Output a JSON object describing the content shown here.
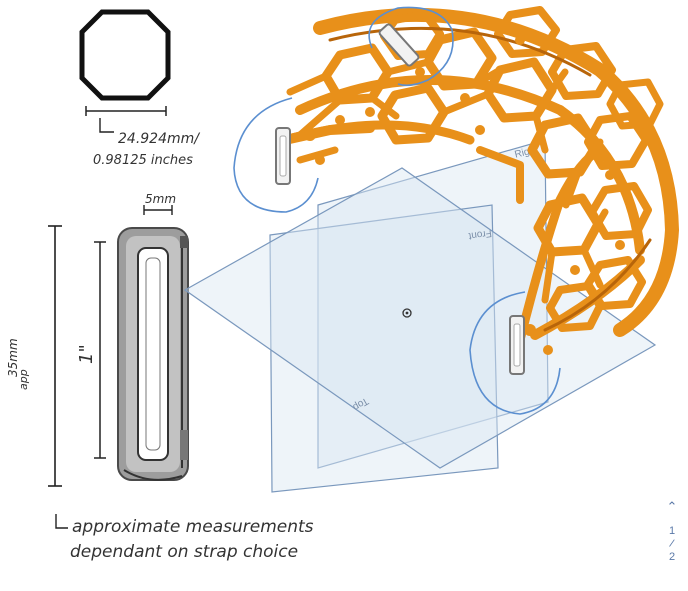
{
  "sketch": {
    "octagon_measure_mm": "24.924mm/",
    "octagon_measure_in": "0.98125 inches",
    "width_label": "5mm",
    "height_label": "35mm",
    "height_label_sub": "app",
    "inner_label": "1\"",
    "note_line1": "approximate measurements",
    "note_line2": "dependant on strap choice"
  },
  "cad": {
    "plane_right": "Right",
    "plane_front": "Front",
    "plane_top": "Top"
  },
  "pager": {
    "up_icon": "chevron-up-icon",
    "current": "1",
    "separator": "/",
    "total": "2"
  },
  "colors": {
    "helmet": "#e8901a",
    "helmet_dark": "#b8650a",
    "plane_fill": "#d9e6f2",
    "plane_stroke": "#7a98bd",
    "circle_annotation": "#5b8fd0",
    "clip_gray": "#9a9a9a"
  }
}
